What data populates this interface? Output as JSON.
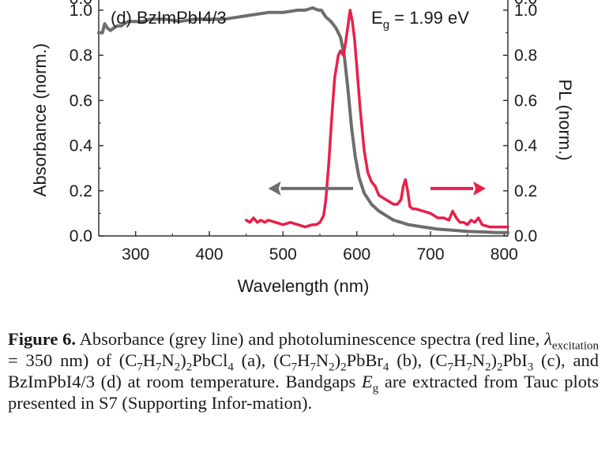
{
  "chart_data": {
    "type": "line",
    "panel_label": "(d) BzImPbI4/3",
    "annotation": {
      "symbol": "E",
      "subscript": "g",
      "text": " = 1.99 eV"
    },
    "xlabel": "Wavelength (nm)",
    "ylabel_left": "Absorbance (norm.)",
    "ylabel_right": "PL (norm.)",
    "xlim": [
      250,
      805
    ],
    "ylim": [
      0,
      1.08
    ],
    "xticks": [
      "300",
      "400",
      "500",
      "600",
      "700",
      "800"
    ],
    "xtick_values": [
      300,
      400,
      500,
      600,
      700,
      800
    ],
    "yticks_left": [
      "0.0",
      "0.2",
      "0.4",
      "0.6",
      "0.8",
      "1.0"
    ],
    "yticks_right": [
      "0.0",
      "0.2",
      "0.4",
      "0.6",
      "0.8",
      "1.0"
    ],
    "ytick_values": [
      0.0,
      0.2,
      0.4,
      0.6,
      0.8,
      1.0
    ],
    "series": [
      {
        "name": "Absorbance",
        "color": "#6d6d6d",
        "axis": "left",
        "x": [
          250,
          255,
          258,
          262,
          266,
          270,
          275,
          280,
          290,
          300,
          310,
          320,
          340,
          360,
          380,
          400,
          420,
          440,
          460,
          480,
          500,
          520,
          530,
          540,
          548,
          552,
          558,
          565,
          572,
          578,
          583,
          588,
          593,
          598,
          603,
          610,
          620,
          630,
          640,
          650,
          660,
          670,
          690,
          710,
          730,
          750,
          770,
          790,
          805
        ],
        "values": [
          0.9,
          0.9,
          0.94,
          0.92,
          0.91,
          0.92,
          0.93,
          0.93,
          0.95,
          0.95,
          0.95,
          0.96,
          0.96,
          0.95,
          0.96,
          0.96,
          0.96,
          0.97,
          0.98,
          0.99,
          0.99,
          1.0,
          1.0,
          1.01,
          1.0,
          1.0,
          0.97,
          0.95,
          0.92,
          0.88,
          0.8,
          0.65,
          0.48,
          0.35,
          0.26,
          0.19,
          0.14,
          0.11,
          0.09,
          0.07,
          0.06,
          0.05,
          0.04,
          0.03,
          0.025,
          0.02,
          0.018,
          0.015,
          0.015
        ]
      },
      {
        "name": "PL",
        "color": "#e8204a",
        "axis": "right",
        "x": [
          450,
          455,
          460,
          465,
          470,
          475,
          480,
          490,
          500,
          510,
          520,
          530,
          540,
          545,
          550,
          555,
          558,
          562,
          566,
          570,
          575,
          578,
          582,
          585,
          588,
          591,
          594,
          597,
          600,
          605,
          610,
          615,
          620,
          625,
          630,
          640,
          650,
          655,
          660,
          663,
          666,
          669,
          672,
          676,
          680,
          690,
          700,
          710,
          718,
          725,
          730,
          735,
          740,
          745,
          750,
          755,
          760,
          765,
          770,
          780,
          790,
          800,
          805
        ],
        "values": [
          0.07,
          0.06,
          0.08,
          0.06,
          0.07,
          0.06,
          0.07,
          0.06,
          0.05,
          0.06,
          0.05,
          0.04,
          0.05,
          0.05,
          0.06,
          0.09,
          0.16,
          0.32,
          0.52,
          0.7,
          0.8,
          0.82,
          0.8,
          0.86,
          0.93,
          1.0,
          0.95,
          0.87,
          0.75,
          0.55,
          0.38,
          0.28,
          0.24,
          0.22,
          0.18,
          0.16,
          0.14,
          0.14,
          0.16,
          0.22,
          0.25,
          0.2,
          0.13,
          0.12,
          0.12,
          0.11,
          0.1,
          0.08,
          0.08,
          0.07,
          0.11,
          0.08,
          0.06,
          0.06,
          0.05,
          0.07,
          0.06,
          0.08,
          0.05,
          0.04,
          0.04,
          0.04,
          0.04
        ]
      }
    ],
    "arrows": [
      {
        "color": "#6d6d6d",
        "from_x": 595,
        "to_x": 480,
        "y": 0.21,
        "points_to": "left axis"
      },
      {
        "color": "#e8204a",
        "from_x": 700,
        "to_x": 775,
        "y": 0.21,
        "points_to": "right axis"
      }
    ],
    "top_tick_fragments": {
      "left": "0.0",
      "right": "0.0"
    }
  },
  "caption": {
    "label": "Figure 6.",
    "text_1": " Absorbance (grey line) and photoluminescence spectra (red line, ",
    "lambda": "λ",
    "lambda_sub": "excitation",
    "text_2": " = 350 nm) of (C",
    "c7": "7",
    "h7": "7",
    "n2": "2",
    "sub2": "2",
    "cl4": "4",
    "text_pbcl": ")",
    "f1_tail": "PbCl",
    "f1_after": " (a), (C",
    "f2_tail": "PbBr",
    "f2_after": " (b),",
    "f3_open": "(C",
    "f3_tail": "PbI",
    "f3_sub": "3",
    "f3_after": " (c), and BzImPbI4/3 (d) at room temperature. Bandgaps ",
    "eg_symbol": "E",
    "eg_sub": "g",
    "text_3": " are extracted from Tauc plots presented in S7 (Supporting Infor-mation)."
  }
}
